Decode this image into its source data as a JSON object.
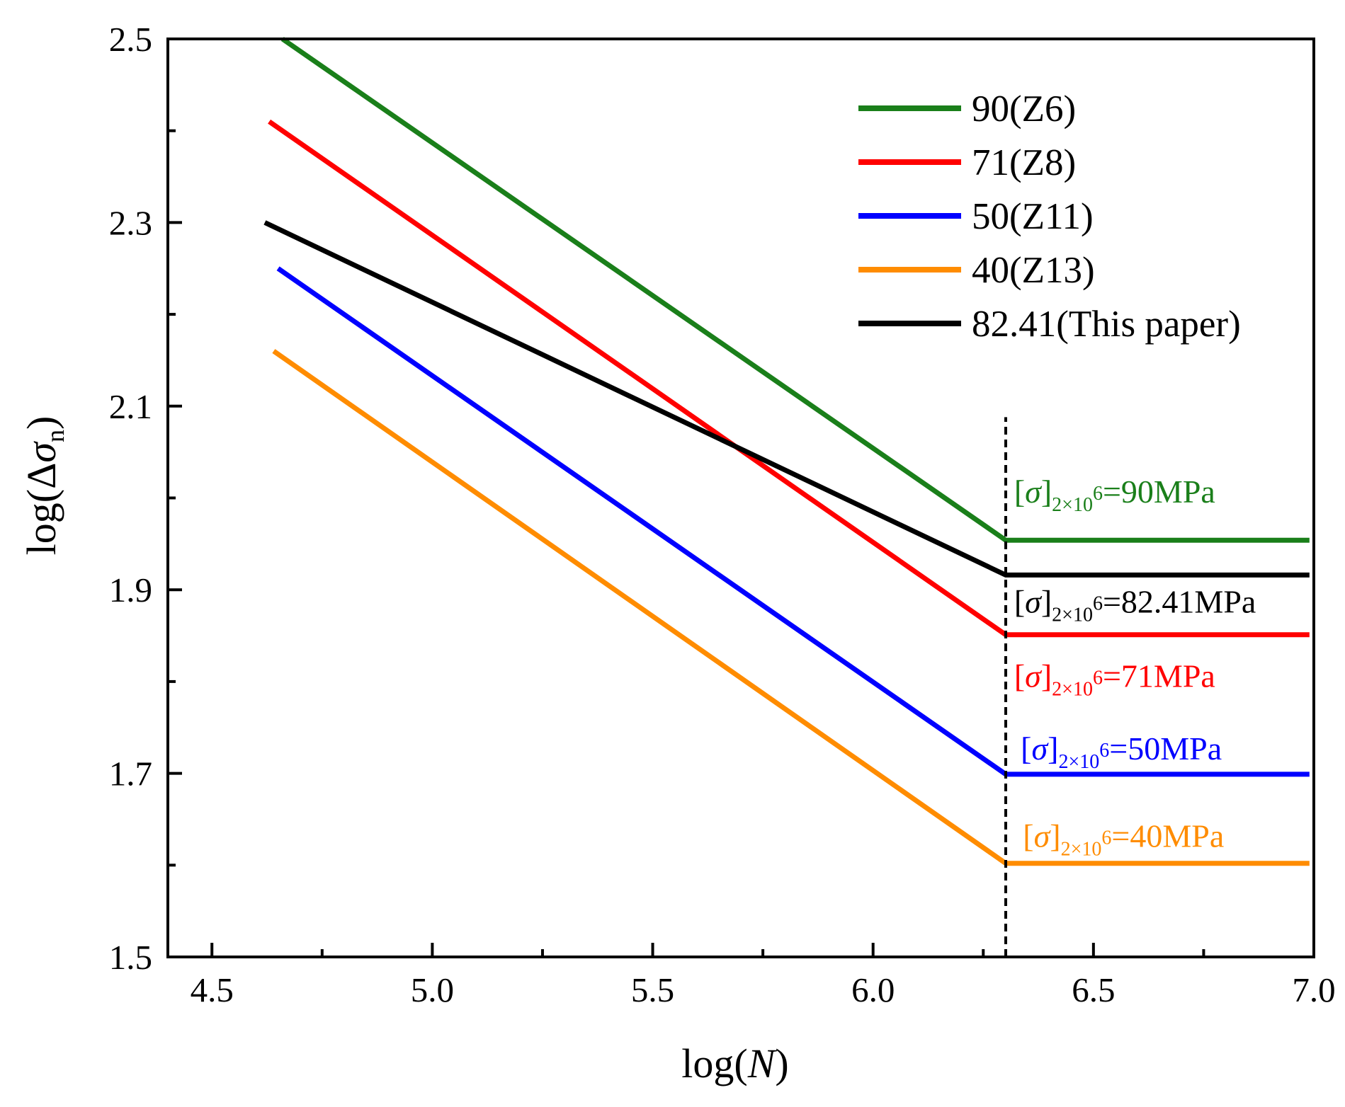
{
  "chart_data": {
    "type": "line",
    "title": "",
    "xlabel": {
      "prefix": "log(",
      "var": "N",
      "suffix": ")"
    },
    "ylabel": {
      "prefix": "log(Δ",
      "var": "σ",
      "sub": "n",
      "suffix": ")"
    },
    "xlim": [
      4.4,
      7.0
    ],
    "ylim": [
      1.5,
      2.5
    ],
    "x_ticks": [
      4.5,
      5.0,
      5.5,
      6.0,
      6.5,
      7.0
    ],
    "x_tick_labels": [
      "4.5",
      "5.0",
      "5.5",
      "6.0",
      "6.5",
      "7.0"
    ],
    "x_minor_ticks": [
      4.75,
      5.25,
      5.75,
      6.25,
      6.75
    ],
    "y_ticks": [
      1.5,
      1.7,
      1.9,
      2.1,
      2.3,
      2.5
    ],
    "y_tick_labels": [
      "1.5",
      "1.7",
      "1.9",
      "2.1",
      "2.3",
      "2.5"
    ],
    "y_minor_ticks": [
      1.6,
      1.8,
      2.0,
      2.2,
      2.4
    ],
    "grid": false,
    "legend_position": "top-right",
    "vline": {
      "x": 6.301,
      "style": "dashed",
      "color": "#000000",
      "y_top": 2.088
    },
    "series": [
      {
        "name": "90(Z6)",
        "color": "#1a7f1a",
        "x": [
          4.66,
          6.301,
          6.99
        ],
        "y": [
          2.5,
          1.954,
          1.954
        ]
      },
      {
        "name": "71(Z8)",
        "color": "#ff0000",
        "x": [
          4.63,
          6.301,
          6.99
        ],
        "y": [
          2.41,
          1.851,
          1.851
        ]
      },
      {
        "name": "50(Z11)",
        "color": "#0000ff",
        "x": [
          4.65,
          6.301,
          6.99
        ],
        "y": [
          2.25,
          1.699,
          1.699
        ]
      },
      {
        "name": "40(Z13)",
        "color": "#ff8c00",
        "x": [
          4.64,
          6.301,
          6.99
        ],
        "y": [
          2.16,
          1.602,
          1.602
        ]
      },
      {
        "name": "82.41(This paper)",
        "color": "#000000",
        "x": [
          4.62,
          6.301,
          6.99
        ],
        "y": [
          2.3,
          1.916,
          1.916
        ]
      }
    ],
    "annotations": [
      {
        "series": "90(Z6)",
        "bracket_open": "[",
        "symbol": "σ",
        "bracket_close": "]",
        "subscript": "2×10",
        "superscript": "6",
        "value_text": "=90MPa",
        "color": "#1a7f1a",
        "x": 6.32,
        "y": 1.995
      },
      {
        "series": "82.41(This paper)",
        "bracket_open": "[",
        "symbol": "σ",
        "bracket_close": "]",
        "subscript": "2×10",
        "superscript": "6",
        "value_text": "=82.41MPa",
        "color": "#000000",
        "x": 6.32,
        "y": 1.875
      },
      {
        "series": "71(Z8)",
        "bracket_open": "[",
        "symbol": "σ",
        "bracket_close": "]",
        "subscript": "2×10",
        "superscript": "6",
        "value_text": "=71MPa",
        "color": "#ff0000",
        "x": 6.32,
        "y": 1.794
      },
      {
        "series": "50(Z11)",
        "bracket_open": "[",
        "symbol": "σ",
        "bracket_close": "]",
        "subscript": "2×10",
        "superscript": "6",
        "value_text": "=50MPa",
        "color": "#0000ff",
        "x": 6.335,
        "y": 1.715
      },
      {
        "series": "40(Z13)",
        "bracket_open": "[",
        "symbol": "σ",
        "bracket_close": "]",
        "subscript": "2×10",
        "superscript": "6",
        "value_text": "=40MPa",
        "color": "#ff8c00",
        "x": 6.34,
        "y": 1.62
      }
    ]
  }
}
